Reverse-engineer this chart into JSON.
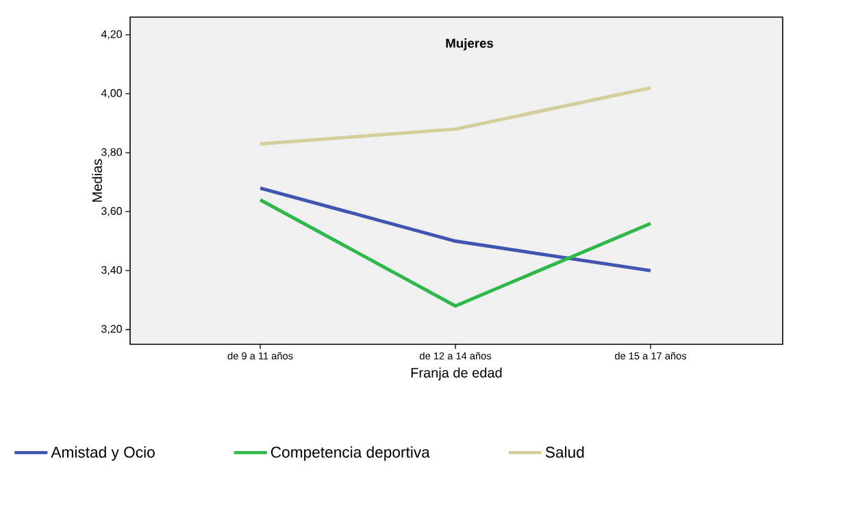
{
  "chart_data": {
    "type": "line",
    "title": "Mujeres",
    "xlabel": "Franja de edad",
    "ylabel": "Medias",
    "categories": [
      "de 9 a 11 años",
      "de 12 a 14 años",
      "de 15 a 17 años"
    ],
    "series": [
      {
        "name": "Amistad y Ocio",
        "color": "#3f55b0",
        "values": [
          3.68,
          3.5,
          3.4
        ]
      },
      {
        "name": "Competencia deportiva",
        "color": "#2eb84a",
        "values": [
          3.64,
          3.28,
          3.56
        ]
      },
      {
        "name": "Salud",
        "color": "#d4cf9a",
        "values": [
          3.83,
          3.88,
          4.02
        ]
      }
    ],
    "ylim": [
      3.15,
      4.26
    ],
    "yticks": [
      {
        "value": 3.2,
        "label": "3,20"
      },
      {
        "value": 3.4,
        "label": "3,40"
      },
      {
        "value": 3.6,
        "label": "3,60"
      },
      {
        "value": 3.8,
        "label": "3,80"
      },
      {
        "value": 4.0,
        "label": "4,00"
      },
      {
        "value": 4.2,
        "label": "4,20"
      }
    ],
    "grid": false,
    "legend": "bottom",
    "marker": "none",
    "line_style": "solid"
  }
}
